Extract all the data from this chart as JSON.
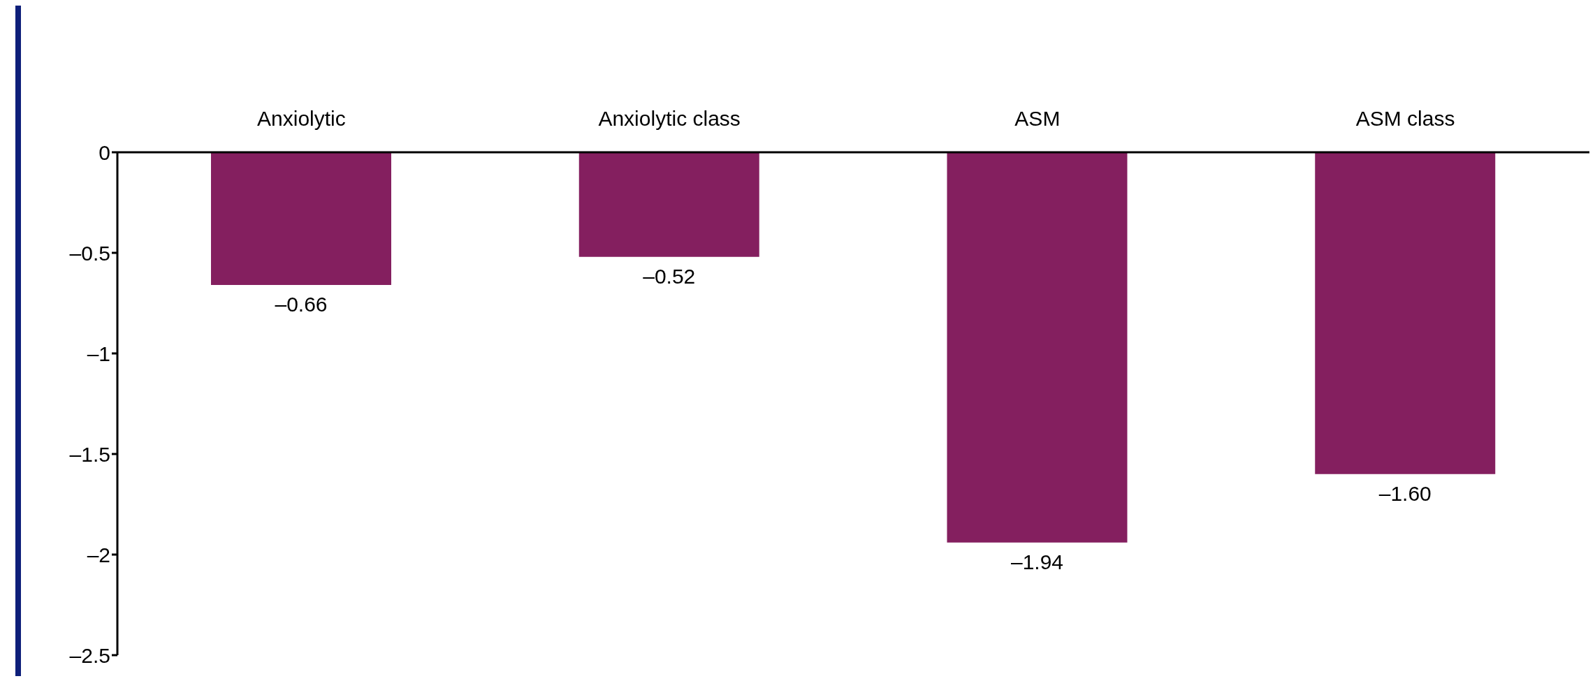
{
  "chart_data": {
    "type": "bar",
    "categories": [
      "Anxiolytic",
      "Anxiolytic class",
      "ASM",
      "ASM class"
    ],
    "values": [
      -0.66,
      -0.52,
      -1.94,
      -1.6
    ],
    "value_labels": [
      "–0.66",
      "–0.52",
      "–1.94",
      "–1.60"
    ],
    "color": "#841f5f",
    "ylim": [
      -2.5,
      0
    ],
    "yticks": [
      {
        "value": 0,
        "label": "0"
      },
      {
        "value": -0.5,
        "label": "–0.5"
      },
      {
        "value": -1,
        "label": "–1"
      },
      {
        "value": -1.5,
        "label": "–1.5"
      },
      {
        "value": -2,
        "label": "–2"
      },
      {
        "value": -2.5,
        "label": "–2.5"
      }
    ],
    "grid": false,
    "legend": false
  }
}
